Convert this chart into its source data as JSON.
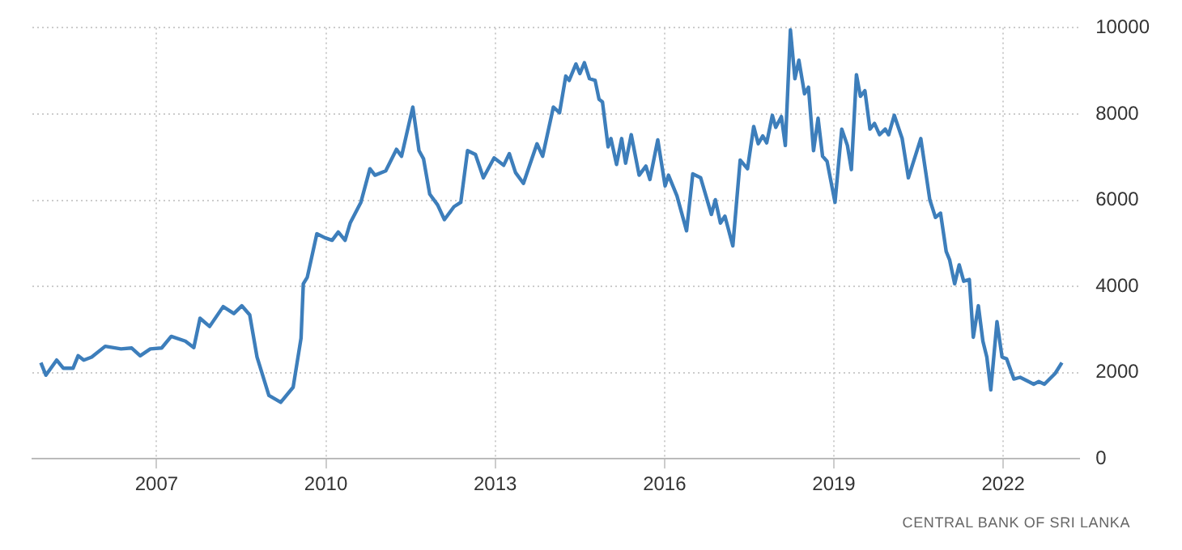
{
  "chart_data": {
    "type": "line",
    "x": [
      2004.95,
      2005.04,
      2005.23,
      2005.35,
      2005.52,
      2005.61,
      2005.71,
      2005.85,
      2006.09,
      2006.37,
      2006.56,
      2006.71,
      2006.89,
      2007.09,
      2007.26,
      2007.51,
      2007.66,
      2007.77,
      2007.94,
      2008.18,
      2008.37,
      2008.51,
      2008.65,
      2008.78,
      2008.99,
      2009.2,
      2009.42,
      2009.56,
      2009.6,
      2009.67,
      2009.84,
      2009.98,
      2010.11,
      2010.22,
      2010.34,
      2010.43,
      2010.62,
      2010.78,
      2010.87,
      2011.06,
      2011.25,
      2011.34,
      2011.54,
      2011.65,
      2011.73,
      2011.84,
      2011.98,
      2012.1,
      2012.27,
      2012.39,
      2012.51,
      2012.65,
      2012.79,
      2012.98,
      2013.15,
      2013.25,
      2013.36,
      2013.5,
      2013.74,
      2013.84,
      2014.03,
      2014.14,
      2014.25,
      2014.31,
      2014.43,
      2014.5,
      2014.58,
      2014.67,
      2014.77,
      2014.84,
      2014.9,
      2015.0,
      2015.05,
      2015.15,
      2015.24,
      2015.31,
      2015.41,
      2015.55,
      2015.67,
      2015.74,
      2015.88,
      2016.01,
      2016.07,
      2016.22,
      2016.39,
      2016.5,
      2016.64,
      2016.83,
      2016.9,
      2016.99,
      2017.07,
      2017.21,
      2017.34,
      2017.47,
      2017.58,
      2017.66,
      2017.74,
      2017.81,
      2017.91,
      2017.97,
      2018.07,
      2018.14,
      2018.23,
      2018.31,
      2018.38,
      2018.48,
      2018.55,
      2018.64,
      2018.72,
      2018.8,
      2018.88,
      2019.02,
      2019.14,
      2019.24,
      2019.31,
      2019.4,
      2019.47,
      2019.55,
      2019.64,
      2019.72,
      2019.81,
      2019.91,
      2019.97,
      2020.07,
      2020.21,
      2020.32,
      2020.54,
      2020.7,
      2020.8,
      2020.89,
      2020.99,
      2021.05,
      2021.14,
      2021.22,
      2021.3,
      2021.4,
      2021.47,
      2021.56,
      2021.64,
      2021.71,
      2021.78,
      2021.89,
      2021.98,
      2022.06,
      2022.19,
      2022.3,
      2022.54,
      2022.63,
      2022.73,
      2022.92,
      2023.04
    ],
    "series": [
      {
        "color": "#3d7ebb",
        "values": [
          2230,
          1940,
          2290,
          2100,
          2100,
          2390,
          2290,
          2360,
          2610,
          2550,
          2570,
          2390,
          2550,
          2570,
          2840,
          2730,
          2580,
          3260,
          3070,
          3530,
          3370,
          3550,
          3340,
          2360,
          1470,
          1310,
          1660,
          2800,
          4060,
          4210,
          5220,
          5130,
          5070,
          5260,
          5070,
          5470,
          5950,
          6730,
          6580,
          6680,
          7180,
          7020,
          8160,
          7150,
          6960,
          6140,
          5890,
          5550,
          5850,
          5950,
          7150,
          7060,
          6520,
          6980,
          6810,
          7080,
          6640,
          6390,
          7310,
          7020,
          8160,
          8030,
          8880,
          8780,
          9160,
          8940,
          9190,
          8820,
          8780,
          8340,
          8280,
          7240,
          7430,
          6830,
          7430,
          6860,
          7520,
          6580,
          6790,
          6480,
          7400,
          6330,
          6580,
          6100,
          5290,
          6610,
          6520,
          5670,
          6010,
          5470,
          5630,
          4940,
          6930,
          6730,
          7710,
          7310,
          7490,
          7330,
          7970,
          7690,
          7940,
          7270,
          9950,
          8820,
          9250,
          8470,
          8620,
          7150,
          7900,
          7020,
          6900,
          5950,
          7650,
          7270,
          6710,
          8910,
          8410,
          8540,
          7650,
          7780,
          7520,
          7650,
          7520,
          7970,
          7430,
          6520,
          7430,
          6010,
          5600,
          5700,
          4810,
          4620,
          4060,
          4500,
          4120,
          4160,
          2820,
          3550,
          2730,
          2360,
          1600,
          3180,
          2360,
          2320,
          1850,
          1890,
          1730,
          1790,
          1730,
          1980,
          2230
        ]
      }
    ],
    "xlim": [
      2004.8,
      2023.35
    ],
    "xticks": [
      2007,
      2010,
      2013,
      2016,
      2019,
      2022
    ],
    "ylim": [
      0,
      10000
    ],
    "yticks": [
      0,
      2000,
      4000,
      6000,
      8000,
      10000
    ],
    "grid": true,
    "legend": false,
    "marker": "none",
    "line_style": "solid",
    "annotations": [
      "CENTRAL BANK OF SRI LANKA"
    ]
  }
}
